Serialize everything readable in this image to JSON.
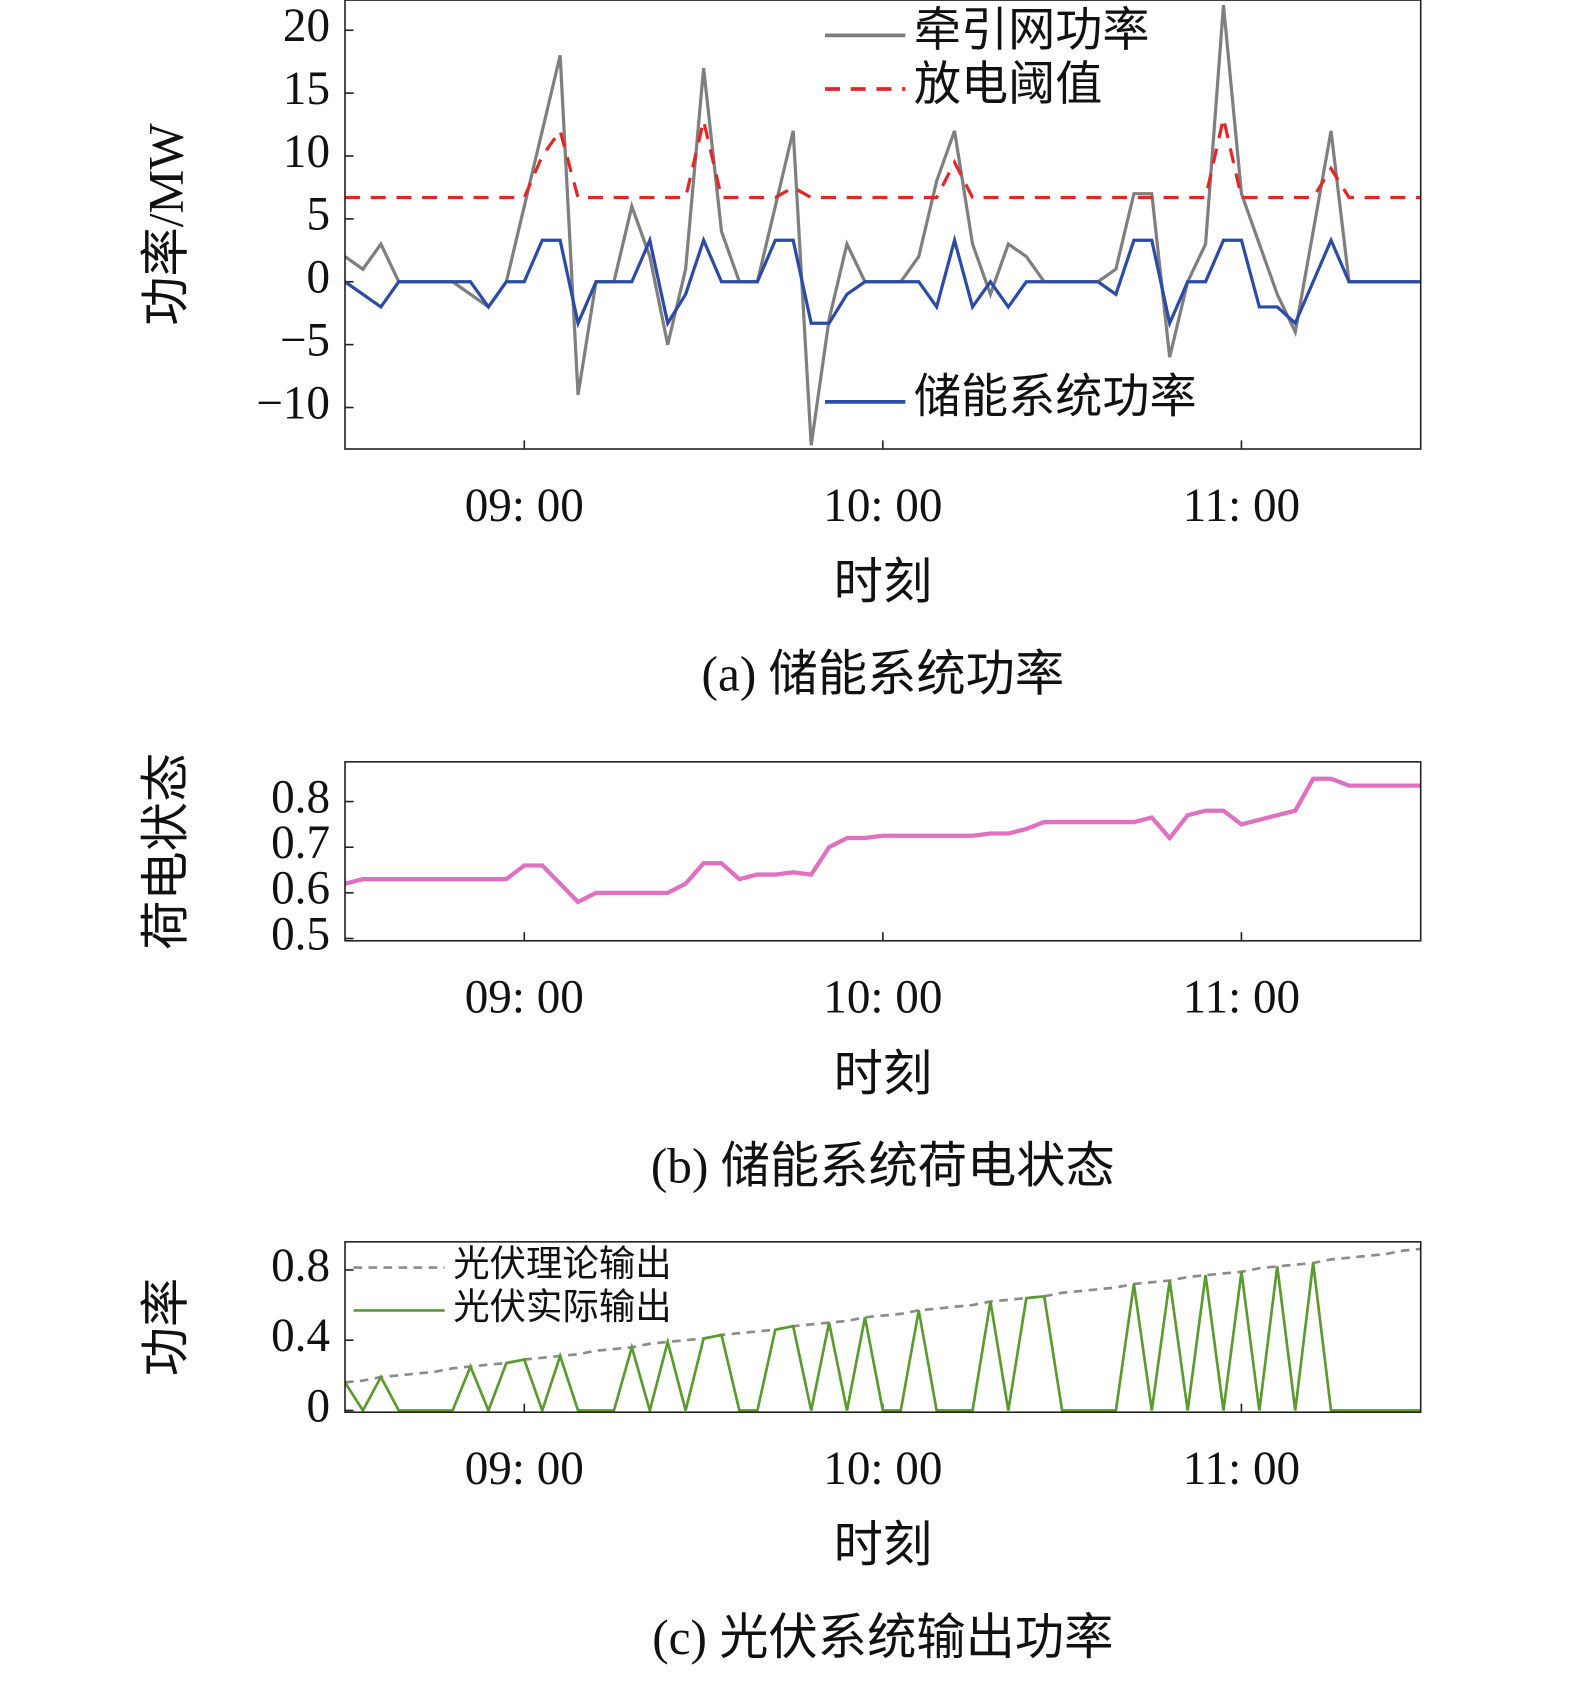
{
  "chart_data": [
    {
      "type": "line",
      "caption": "(a) 储能系统功率",
      "xlabel": "时刻",
      "ylabel": "功率/MW",
      "xlim": [
        "08:30",
        "11:30"
      ],
      "xticks": [
        {
          "value": "09:00",
          "label": "09: 00"
        },
        {
          "value": "10:00",
          "label": "10: 00"
        },
        {
          "value": "11:00",
          "label": "11: 00"
        }
      ],
      "ylim": [
        -13.3,
        22.4
      ],
      "yticks": [
        {
          "value": -10,
          "label": "−10"
        },
        {
          "value": -5,
          "label": "−5"
        },
        0,
        5,
        10,
        15,
        20
      ],
      "x": [
        "08:30",
        "08:33",
        "08:36",
        "08:39",
        "08:42",
        "08:45",
        "08:48",
        "08:51",
        "08:54",
        "08:57",
        "09:00",
        "09:03",
        "09:06",
        "09:09",
        "09:12",
        "09:15",
        "09:18",
        "09:21",
        "09:24",
        "09:27",
        "09:30",
        "09:33",
        "09:36",
        "09:39",
        "09:42",
        "09:45",
        "09:48",
        "09:51",
        "09:54",
        "09:57",
        "10:00",
        "10:03",
        "10:06",
        "10:09",
        "10:12",
        "10:15",
        "10:18",
        "10:21",
        "10:24",
        "10:27",
        "10:30",
        "10:33",
        "10:36",
        "10:39",
        "10:42",
        "10:45",
        "10:48",
        "10:51",
        "10:54",
        "10:57",
        "11:00",
        "11:03",
        "11:06",
        "11:09",
        "11:12",
        "11:15",
        "11:18",
        "11:21",
        "11:24",
        "11:27",
        "11:30"
      ],
      "series": [
        {
          "name": "牵引网功率",
          "color": "#7f7f7f",
          "dash": "solid",
          "legend": "upper right",
          "values": [
            2,
            1,
            3,
            0,
            0,
            0,
            0,
            -1,
            -2,
            0,
            6,
            12,
            18,
            -9,
            0,
            0,
            6,
            2,
            -5,
            1,
            17,
            4,
            0,
            0,
            6,
            12,
            -13,
            -3,
            3,
            0,
            0,
            0,
            2,
            8,
            12,
            3,
            -1,
            3,
            2,
            0,
            0,
            0,
            0,
            1,
            7,
            7,
            -6,
            0,
            3,
            22,
            7,
            3,
            -1,
            -4,
            4,
            12,
            0,
            0,
            0,
            0,
            0
          ]
        },
        {
          "name": "放电阈值",
          "color": "#e02828",
          "dash": "dashed",
          "legend": "upper right",
          "values": [
            6.7,
            6.7,
            6.7,
            6.7,
            6.7,
            6.7,
            6.7,
            6.7,
            6.7,
            6.7,
            6.7,
            10,
            12,
            6.7,
            6.7,
            6.7,
            6.7,
            6.7,
            6.7,
            6.7,
            12.8,
            6.7,
            6.7,
            6.7,
            6.7,
            7.5,
            6.7,
            6.7,
            6.7,
            6.7,
            6.7,
            6.7,
            6.7,
            6.7,
            9.5,
            6.7,
            6.7,
            6.7,
            6.7,
            6.7,
            6.7,
            6.7,
            6.7,
            6.7,
            6.7,
            6.7,
            6.7,
            6.7,
            6.7,
            13,
            6.7,
            6.7,
            6.7,
            6.7,
            6.7,
            9,
            6.7,
            6.7,
            6.7,
            6.7,
            6.7
          ]
        },
        {
          "name": "储能系统功率",
          "color": "#2b4ba6",
          "dash": "solid",
          "legend": "lower right",
          "values": [
            0,
            -1,
            -2,
            0,
            0,
            0,
            0,
            0,
            -2,
            0,
            0,
            3.3,
            3.3,
            -3.3,
            0,
            0,
            0,
            3.3,
            -3.3,
            -1,
            3.3,
            0,
            0,
            0,
            3.3,
            3.3,
            -3.3,
            -3.3,
            -1,
            0,
            0,
            0,
            0,
            -2,
            3.3,
            -2,
            0,
            -2,
            0,
            0,
            0,
            0,
            0,
            -1,
            3.3,
            3.3,
            -3.3,
            0,
            0,
            3.3,
            3.3,
            -2,
            -2,
            -3.3,
            0,
            3.3,
            0,
            0,
            0,
            0,
            0
          ]
        }
      ]
    },
    {
      "type": "line",
      "caption": "(b) 储能系统荷电状态",
      "xlabel": "时刻",
      "ylabel": "荷电状态",
      "xlim": [
        "08:30",
        "11:30"
      ],
      "xticks": [
        {
          "value": "09:00",
          "label": "09: 00"
        },
        {
          "value": "10:00",
          "label": "10: 00"
        },
        {
          "value": "11:00",
          "label": "11: 00"
        }
      ],
      "ylim": [
        0.495,
        0.887
      ],
      "yticks": [
        0.5,
        0.6,
        0.7,
        0.8
      ],
      "x": [
        "08:30",
        "08:33",
        "08:36",
        "08:39",
        "08:42",
        "08:45",
        "08:48",
        "08:51",
        "08:54",
        "08:57",
        "09:00",
        "09:03",
        "09:06",
        "09:09",
        "09:12",
        "09:15",
        "09:18",
        "09:21",
        "09:24",
        "09:27",
        "09:30",
        "09:33",
        "09:36",
        "09:39",
        "09:42",
        "09:45",
        "09:48",
        "09:51",
        "09:54",
        "09:57",
        "10:00",
        "10:03",
        "10:06",
        "10:09",
        "10:12",
        "10:15",
        "10:18",
        "10:21",
        "10:24",
        "10:27",
        "10:30",
        "10:33",
        "10:36",
        "10:39",
        "10:42",
        "10:45",
        "10:48",
        "10:51",
        "10:54",
        "10:57",
        "11:00",
        "11:03",
        "11:06",
        "11:09",
        "11:12",
        "11:15",
        "11:18",
        "11:21",
        "11:24",
        "11:27",
        "11:30"
      ],
      "series": [
        {
          "color": "#e070c0",
          "dash": "solid",
          "values": [
            0.62,
            0.63,
            0.63,
            0.63,
            0.63,
            0.63,
            0.63,
            0.63,
            0.63,
            0.63,
            0.66,
            0.66,
            0.62,
            0.58,
            0.6,
            0.6,
            0.6,
            0.6,
            0.6,
            0.62,
            0.665,
            0.665,
            0.63,
            0.64,
            0.64,
            0.645,
            0.64,
            0.7,
            0.72,
            0.72,
            0.725,
            0.725,
            0.725,
            0.725,
            0.725,
            0.725,
            0.73,
            0.73,
            0.74,
            0.755,
            0.755,
            0.755,
            0.755,
            0.755,
            0.755,
            0.765,
            0.72,
            0.77,
            0.78,
            0.78,
            0.75,
            0.76,
            0.77,
            0.78,
            0.85,
            0.85,
            0.835,
            0.835,
            0.835,
            0.835,
            0.835
          ]
        }
      ]
    },
    {
      "type": "line",
      "caption": "(c) 光伏系统输出功率",
      "xlabel": "时刻",
      "ylabel": "功率",
      "xlim": [
        "08:30",
        "11:30"
      ],
      "xticks": [
        {
          "value": "09:00",
          "label": "09: 00"
        },
        {
          "value": "10:00",
          "label": "10: 00"
        },
        {
          "value": "11:00",
          "label": "11: 00"
        }
      ],
      "ylim": [
        -0.01,
        0.96
      ],
      "yticks": [
        0,
        0.4,
        0.8
      ],
      "x": [
        "08:30",
        "08:33",
        "08:36",
        "08:39",
        "08:42",
        "08:45",
        "08:48",
        "08:51",
        "08:54",
        "08:57",
        "09:00",
        "09:03",
        "09:06",
        "09:09",
        "09:12",
        "09:15",
        "09:18",
        "09:21",
        "09:24",
        "09:27",
        "09:30",
        "09:33",
        "09:36",
        "09:39",
        "09:42",
        "09:45",
        "09:48",
        "09:51",
        "09:54",
        "09:57",
        "10:00",
        "10:03",
        "10:06",
        "10:09",
        "10:12",
        "10:15",
        "10:18",
        "10:21",
        "10:24",
        "10:27",
        "10:30",
        "10:33",
        "10:36",
        "10:39",
        "10:42",
        "10:45",
        "10:48",
        "10:51",
        "10:54",
        "10:57",
        "11:00",
        "11:03",
        "11:06",
        "11:09",
        "11:12",
        "11:15",
        "11:18",
        "11:21",
        "11:24",
        "11:27",
        "11:30"
      ],
      "series": [
        {
          "name": "光伏理论输出",
          "color": "#8c8c8c",
          "dash": "dashed",
          "legend": "upper left",
          "values": [
            0.16,
            0.17,
            0.19,
            0.2,
            0.21,
            0.22,
            0.24,
            0.25,
            0.26,
            0.27,
            0.29,
            0.3,
            0.31,
            0.32,
            0.34,
            0.35,
            0.36,
            0.38,
            0.39,
            0.4,
            0.41,
            0.43,
            0.44,
            0.45,
            0.46,
            0.48,
            0.49,
            0.5,
            0.51,
            0.53,
            0.54,
            0.55,
            0.57,
            0.58,
            0.59,
            0.6,
            0.62,
            0.63,
            0.64,
            0.65,
            0.67,
            0.68,
            0.69,
            0.7,
            0.72,
            0.73,
            0.74,
            0.76,
            0.77,
            0.78,
            0.79,
            0.81,
            0.82,
            0.83,
            0.84,
            0.86,
            0.87,
            0.88,
            0.89,
            0.91,
            0.92
          ]
        },
        {
          "name": "光伏实际输出",
          "color": "#5a9a2e",
          "dash": "solid",
          "legend": "upper left",
          "values": [
            0.16,
            0,
            0.19,
            0,
            0,
            0,
            0,
            0.25,
            0,
            0.27,
            0.29,
            0,
            0.31,
            0,
            0,
            0,
            0.36,
            0,
            0.39,
            0,
            0.41,
            0.43,
            0,
            0,
            0.46,
            0.48,
            0,
            0.5,
            0,
            0.53,
            0,
            0,
            0.57,
            0,
            0,
            0,
            0.62,
            0,
            0.64,
            0.65,
            0,
            0,
            0,
            0,
            0.72,
            0,
            0.74,
            0,
            0.77,
            0,
            0.79,
            0,
            0.82,
            0,
            0.84,
            0,
            0,
            0,
            0,
            0,
            0
          ]
        }
      ]
    }
  ]
}
